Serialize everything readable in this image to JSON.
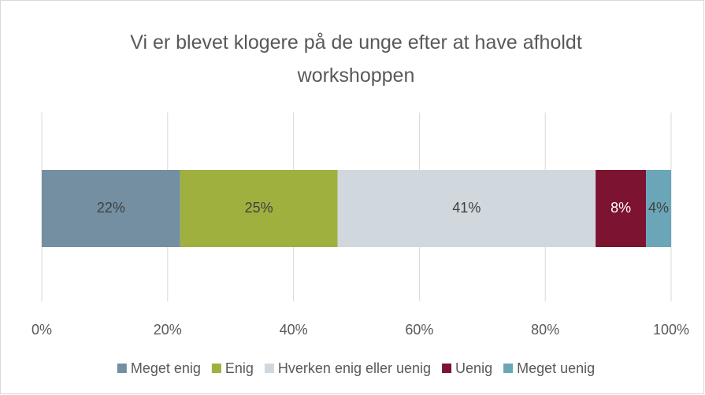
{
  "chart_data": {
    "type": "bar",
    "orientation": "horizontal",
    "stacked": true,
    "title": "Vi er blevet klogere på de unge efter at have afholdt workshoppen",
    "series": [
      {
        "name": "Meget enig",
        "color": "#738fa1",
        "values": [
          22
        ],
        "value_labels": [
          "22%"
        ]
      },
      {
        "name": "Enig",
        "color": "#a0b03f",
        "values": [
          25
        ],
        "value_labels": [
          "25%"
        ]
      },
      {
        "name": "Hverken enig eller uenig",
        "color": "#d0d8de",
        "values": [
          41
        ],
        "value_labels": [
          "41%"
        ]
      },
      {
        "name": "Uenig",
        "color": "#7c1431",
        "values": [
          8
        ],
        "value_labels": [
          "8%"
        ]
      },
      {
        "name": "Meget uenig",
        "color": "#6aa6b8",
        "values": [
          4
        ],
        "value_labels": [
          "4%"
        ]
      }
    ],
    "xlim": [
      0,
      100
    ],
    "xticks": [
      {
        "value": 0,
        "label": "0%"
      },
      {
        "value": 20,
        "label": "20%"
      },
      {
        "value": 40,
        "label": "40%"
      },
      {
        "value": 60,
        "label": "60%"
      },
      {
        "value": 80,
        "label": "80%"
      },
      {
        "value": 100,
        "label": "100%"
      }
    ],
    "grid": true,
    "legend": "bottom"
  }
}
